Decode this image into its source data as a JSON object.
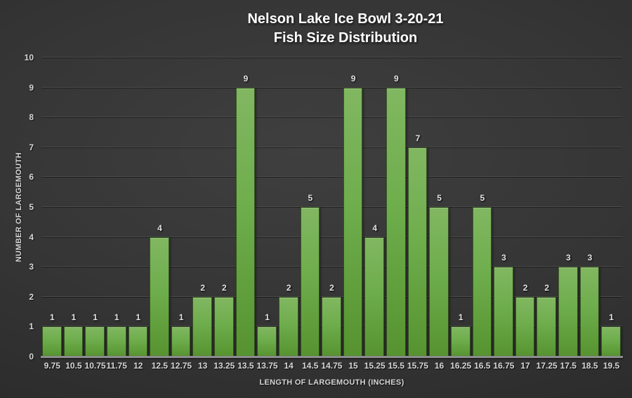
{
  "title": {
    "line1": "Nelson Lake Ice Bowl 3-20-21",
    "line2": "Fish Size Distribution"
  },
  "chart_data": {
    "type": "bar",
    "title": "Nelson Lake Ice Bowl 3-20-21 Fish Size Distribution",
    "xlabel": "LENGTH OF LARGEMOUTH (INCHES)",
    "ylabel": "NUMBER OF LARGEMOUTH",
    "categories": [
      "9.75",
      "10.5",
      "10.75",
      "11.75",
      "12",
      "12.5",
      "12.75",
      "13",
      "13.25",
      "13.5",
      "13.75",
      "14",
      "14.5",
      "14.75",
      "15",
      "15.25",
      "15.5",
      "15.75",
      "16",
      "16.25",
      "16.5",
      "16.75",
      "17",
      "17.25",
      "17.5",
      "18.5",
      "19.5"
    ],
    "values": [
      1,
      1,
      1,
      1,
      1,
      4,
      1,
      2,
      2,
      9,
      1,
      2,
      5,
      2,
      9,
      4,
      9,
      7,
      5,
      1,
      5,
      3,
      2,
      2,
      3,
      3,
      1
    ],
    "ylim": [
      0,
      10
    ],
    "ytick_interval": 1,
    "grid": true,
    "legend_position": "none",
    "data_labels": true,
    "colors": {
      "bar_top": "#81b761",
      "bar_bottom": "#569330",
      "background_center": "#3f3f3f",
      "background_edge": "#262626",
      "gridline": "#4c4c4c",
      "axis_line": "#8d8d8d",
      "text": "#d6d6d6",
      "title_text": "#ffffff"
    }
  }
}
